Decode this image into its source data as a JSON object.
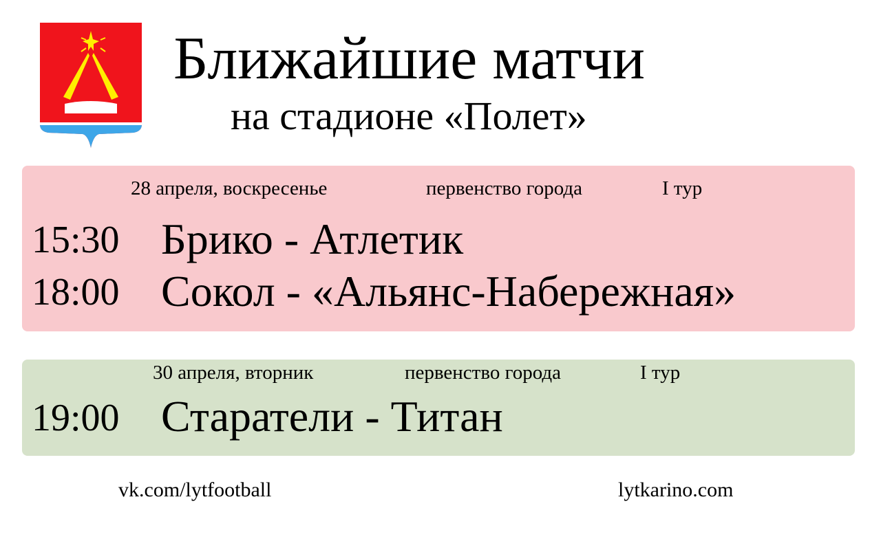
{
  "header": {
    "title": "Ближайшие матчи",
    "subtitle": "на стадионе «Полет»",
    "emblem_icon": "city-coat-of-arms"
  },
  "colors": {
    "day1_bg": "#f9c9cd",
    "day2_bg": "#d6e2ca",
    "emblem_red": "#f0141c",
    "emblem_yellow": "#ffee00",
    "emblem_blue": "#3ea6e8"
  },
  "days": [
    {
      "date": "28 апреля, воскресенье",
      "competition": "первенство города",
      "round": "I тур",
      "matches": [
        {
          "time": "15:30",
          "teams": "Брико - Атлетик"
        },
        {
          "time": "18:00",
          "teams": "Сокол -  «Альянс-Набережная»"
        }
      ]
    },
    {
      "date": "30 апреля, вторник",
      "competition": "первенство города",
      "round": "I тур",
      "matches": [
        {
          "time": "19:00",
          "teams": "Старатели - Титан"
        }
      ]
    }
  ],
  "footer": {
    "left": "vk.com/lytfootball",
    "right": "lytkarino.com"
  }
}
